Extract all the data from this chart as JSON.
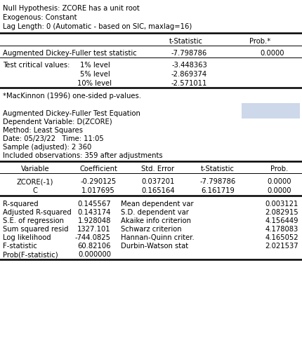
{
  "header_lines": [
    "Null Hypothesis: ZCORE has a unit root",
    "Exogenous: Constant",
    "Lag Length: 0 (Automatic - based on SIC, maxlag=16)"
  ],
  "footnote": "*MacKinnon (1996) one-sided p-values.",
  "info_lines": [
    "Augmented Dickey-Fuller Test Equation",
    "Dependent Variable: D(ZCORE)",
    "Method: Least Squares",
    "Date: 05/23/22   Time: 11:05",
    "Sample (adjusted): 2 360",
    "Included observations: 359 after adjustments"
  ],
  "table2_header": [
    "Variable",
    "Coefficient",
    "Std. Error",
    "t-Statistic",
    "Prob."
  ],
  "table2_rows": [
    [
      "ZCORE(-1)",
      "-0.290125",
      "0.037201",
      "-7.798786",
      "0.0000"
    ],
    [
      "C",
      "1.017695",
      "0.165164",
      "6.161719",
      "0.0000"
    ]
  ],
  "table3_left": [
    [
      "R-squared",
      "0.145567"
    ],
    [
      "Adjusted R-squared",
      "0.143174"
    ],
    [
      "S.E. of regression",
      "1.928048"
    ],
    [
      "Sum squared resid",
      "1327.101"
    ],
    [
      "Log likelihood",
      "-744.0825"
    ],
    [
      "F-statistic",
      "60.82106"
    ],
    [
      "Prob(F-statistic)",
      "0.000000"
    ]
  ],
  "table3_right": [
    [
      "Mean dependent var",
      "0.003121"
    ],
    [
      "S.D. dependent var",
      "2.082915"
    ],
    [
      "Akaike info criterion",
      "4.156449"
    ],
    [
      "Schwarz criterion",
      "4.178083"
    ],
    [
      "Hannan-Quinn criter.",
      "4.165052"
    ],
    [
      "Durbin-Watson stat",
      "2.021537"
    ]
  ],
  "bg_color": "#ffffff",
  "blue_box_color": "#cdd9ea",
  "font_size": 7.2
}
